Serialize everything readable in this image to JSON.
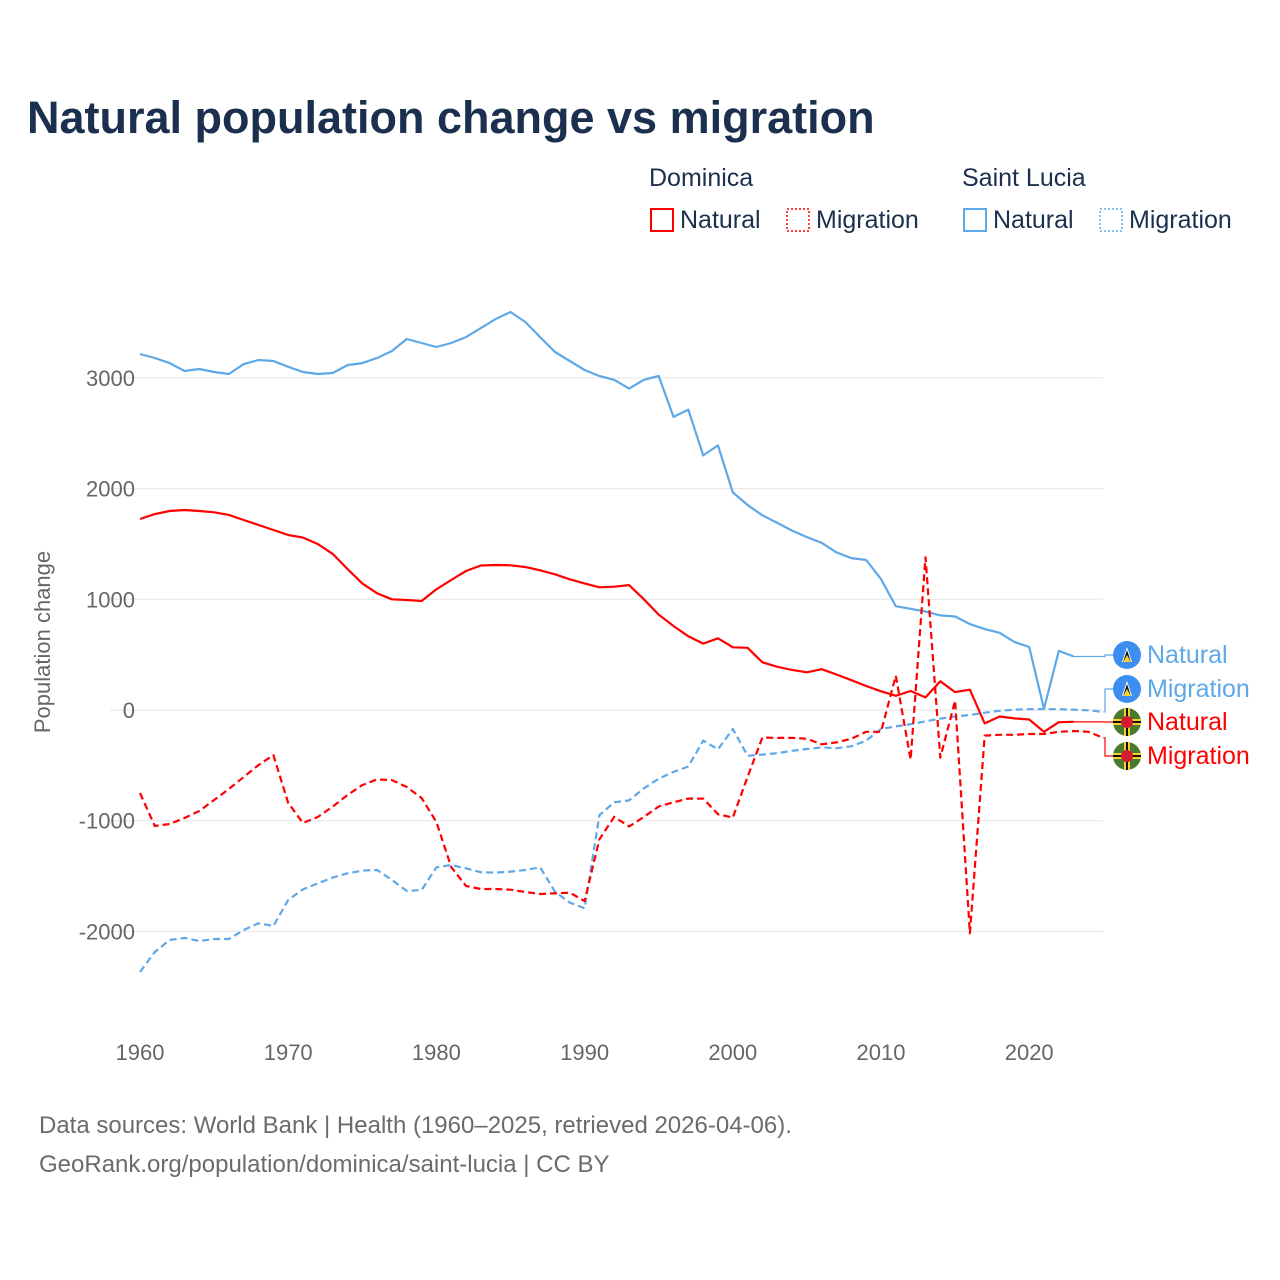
{
  "chart_data": {
    "type": "line",
    "title": "Natural population change vs migration",
    "xlabel": "",
    "ylabel": "Population change",
    "xlim": [
      1960,
      2025
    ],
    "ylim": [
      -2700,
      3800
    ],
    "x_ticks": [
      1960,
      1970,
      1980,
      1990,
      2000,
      2010,
      2020
    ],
    "y_ticks": [
      -2000,
      -1000,
      0,
      1000,
      2000,
      3000
    ],
    "grid": true,
    "legend": {
      "placement": "top-right",
      "groups": [
        {
          "country": "Dominica",
          "items": [
            "Natural",
            "Migration"
          ]
        },
        {
          "country": "Saint Lucia",
          "items": [
            "Natural",
            "Migration"
          ]
        }
      ]
    },
    "series": [
      {
        "name": "Saint Lucia Natural",
        "country": "Saint Lucia",
        "kind": "Natural",
        "end_label": "Natural",
        "color": "#5ea8e8",
        "dashed": false,
        "start_year": 1960,
        "values": [
          3216,
          3180,
          3134,
          3062,
          3080,
          3053,
          3035,
          3125,
          3162,
          3153,
          3100,
          3053,
          3035,
          3044,
          3116,
          3134,
          3180,
          3243,
          3351,
          3315,
          3279,
          3315,
          3369,
          3450,
          3532,
          3595,
          3505,
          3369,
          3234,
          3153,
          3071,
          3017,
          2983,
          2903,
          2983,
          3017,
          2648,
          2714,
          2300,
          2390,
          1966,
          1852,
          1759,
          1690,
          1621,
          1562,
          1510,
          1424,
          1372,
          1355,
          1183,
          938,
          914,
          890,
          855,
          845,
          776,
          731,
          697,
          614,
          569,
          10,
          534,
          483
        ]
      },
      {
        "name": "Saint Lucia Migration",
        "country": "Saint Lucia",
        "kind": "Migration",
        "end_label": "Migration",
        "color": "#5ea8e8",
        "dashed": true,
        "start_year": 1960,
        "values": [
          -2367,
          -2186,
          -2078,
          -2060,
          -2087,
          -2069,
          -2069,
          -1987,
          -1927,
          -1951,
          -1716,
          -1620,
          -1566,
          -1514,
          -1475,
          -1451,
          -1445,
          -1536,
          -1635,
          -1626,
          -1421,
          -1400,
          -1430,
          -1466,
          -1469,
          -1460,
          -1445,
          -1421,
          -1641,
          -1740,
          -1791,
          -950,
          -834,
          -817,
          -707,
          -621,
          -559,
          -510,
          -276,
          -355,
          -172,
          -414,
          -403,
          -390,
          -369,
          -352,
          -338,
          -345,
          -328,
          -276,
          -172,
          -148,
          -128,
          -103,
          -79,
          -59,
          -45,
          -24,
          -7,
          3,
          7,
          7,
          7,
          3,
          -3,
          -17
        ]
      },
      {
        "name": "Dominica Natural",
        "country": "Dominica",
        "kind": "Natural",
        "end_label": "Natural",
        "color": "#ff0000",
        "dashed": false,
        "start_year": 1960,
        "values": [
          1725,
          1770,
          1798,
          1807,
          1798,
          1786,
          1762,
          1716,
          1671,
          1626,
          1581,
          1557,
          1500,
          1410,
          1274,
          1144,
          1054,
          1000,
          994,
          985,
          1090,
          1174,
          1256,
          1305,
          1310,
          1307,
          1292,
          1262,
          1226,
          1181,
          1144,
          1108,
          1114,
          1128,
          1000,
          862,
          759,
          666,
          600,
          648,
          566,
          562,
          431,
          390,
          362,
          341,
          369,
          321,
          269,
          217,
          169,
          128,
          172,
          114,
          259,
          162,
          183,
          -121,
          -59,
          -76,
          -86,
          -197,
          -110,
          -107
        ]
      },
      {
        "name": "Dominica Migration",
        "country": "Dominica",
        "kind": "Migration",
        "end_label": "Migration",
        "color": "#ff0000",
        "dashed": true,
        "start_year": 1960,
        "values": [
          -750,
          -1048,
          -1030,
          -976,
          -912,
          -813,
          -714,
          -605,
          -497,
          -407,
          -840,
          -1021,
          -967,
          -873,
          -768,
          -678,
          -627,
          -633,
          -696,
          -795,
          -1012,
          -1418,
          -1590,
          -1617,
          -1617,
          -1623,
          -1644,
          -1662,
          -1656,
          -1650,
          -1725,
          -1168,
          -966,
          -1052,
          -966,
          -872,
          -834,
          -800,
          -800,
          -941,
          -972,
          -603,
          -248,
          -252,
          -252,
          -259,
          -310,
          -293,
          -259,
          -197,
          -197,
          310,
          -448,
          1379,
          -431,
          86,
          -2017,
          -231,
          -224,
          -224,
          -217,
          -217,
          -197,
          -190,
          -197,
          -252
        ]
      }
    ]
  },
  "source": {
    "line1": "Data sources: World Bank | Health (1960–2025, retrieved 2026-04-06).",
    "line2": "GeoRank.org/population/dominica/saint-lucia | CC BY"
  },
  "colors": {
    "dominica": "#ff0000",
    "saint_lucia": "#5ea8e8",
    "title": "#1b2f4e"
  },
  "icons": {
    "saint_lucia": "saint-lucia-flag-icon",
    "dominica": "dominica-flag-icon"
  }
}
